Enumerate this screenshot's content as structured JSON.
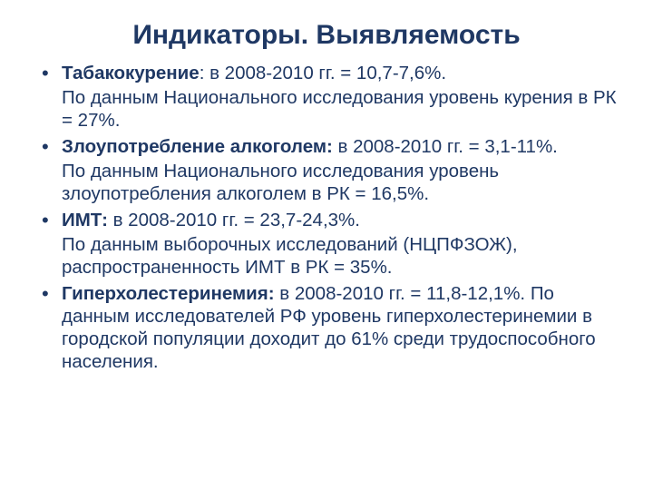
{
  "slide": {
    "title": "Индикаторы. Выявляемость",
    "text_color": "#1f3864",
    "background_color": "#ffffff",
    "title_fontsize": 30,
    "body_fontsize": 20.5,
    "items": [
      {
        "lead": "Табакокурение",
        "lead_tail": ": в 2008-2010 гг. = 10,7-7,6%.",
        "sub": "По данным Национального исследования уровень курения в РК = 27%."
      },
      {
        "lead": "Злоупотребление алкоголем:",
        "lead_tail": " в 2008-2010 гг. = 3,1-11%.",
        "sub": "По данным Национального исследования уровень злоупотребления алкоголем в РК = 16,5%."
      },
      {
        "lead": "ИМТ:",
        "lead_tail": " в 2008-2010 гг. = 23,7-24,3%.",
        "sub": "По данным выборочных исследований (НЦПФЗОЖ), распространенность ИМТ в РК = 35%."
      },
      {
        "lead": "Гиперхолестеринемия:",
        "lead_tail": " в 2008-2010 гг. = 11,8-12,1%. По данным исследователей РФ уровень гиперхолестеринемии в городской популяции доходит до 61% среди трудоспособного населения.",
        "sub": ""
      }
    ]
  }
}
